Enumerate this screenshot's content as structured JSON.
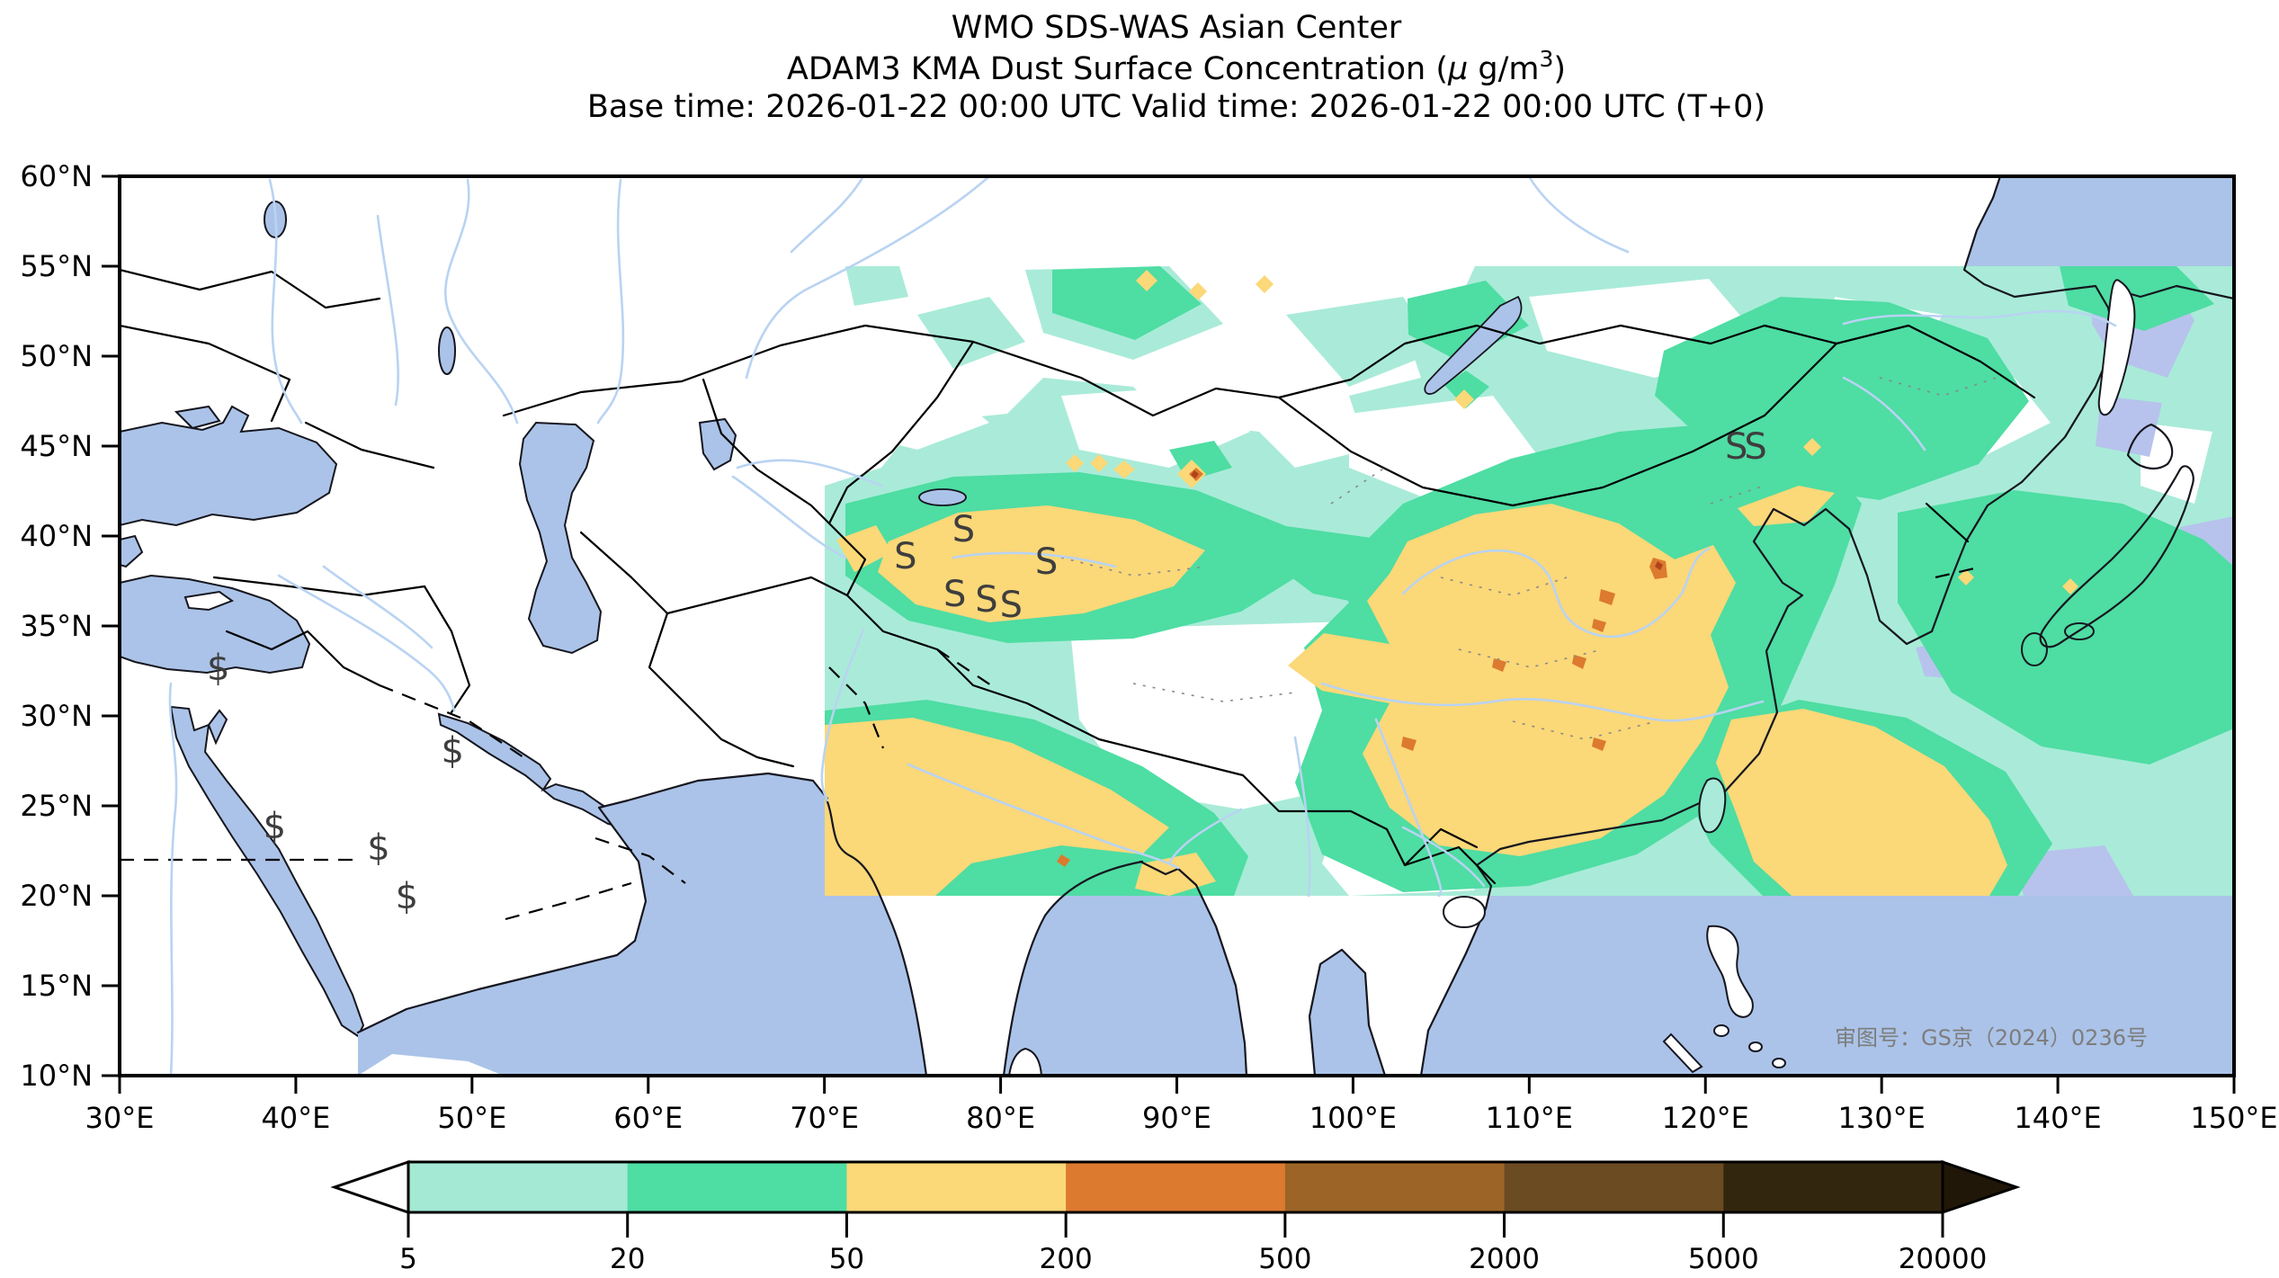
{
  "header": {
    "title": "WMO SDS-WAS Asian Center",
    "subtitle_prefix": "ADAM3 KMA Dust Surface Concentration (",
    "subtitle_mu": "μ",
    "subtitle_unit": " g/m",
    "subtitle_exp": "3",
    "subtitle_suffix": ")",
    "base_valid": "Base time: 2026-01-22 00:00 UTC Valid time: 2026-01-22 00:00 UTC (T+0)"
  },
  "axes": {
    "x": {
      "ticks": [
        "30°E",
        "40°E",
        "50°E",
        "60°E",
        "70°E",
        "80°E",
        "90°E",
        "100°E",
        "110°E",
        "120°E",
        "130°E",
        "140°E",
        "150°E"
      ]
    },
    "y": {
      "ticks": [
        "60°N",
        "55°N",
        "50°N",
        "45°N",
        "40°N",
        "35°N",
        "30°N",
        "25°N",
        "20°N",
        "15°N",
        "10°N"
      ]
    }
  },
  "colorbar": {
    "labels": [
      "5",
      "20",
      "50",
      "200",
      "500",
      "2000",
      "5000",
      "20000"
    ],
    "colors": [
      "#a3e9d4",
      "#4edda3",
      "#fbd878",
      "#dc7a2f",
      "#9c6527",
      "#6b4b22",
      "#33260f"
    ],
    "arrow_left_color": "#ffffff",
    "arrow_right_color": "#211708"
  },
  "map": {
    "annotation": "审图号：GS京（2024）0236号",
    "colors": {
      "ocean": "#abc3e8",
      "river": "#b9d3f2",
      "lavender": "#b7c3ec",
      "coast": "#16161f",
      "level1": "#a9ebd8",
      "level2": "#4edda3",
      "level3": "#fbd878",
      "level4": "#dc7a2f",
      "spot_red": "#b0431c"
    },
    "symbols": [
      {
        "glyph": "$",
        "lon": 35.6,
        "lat": 32.0
      },
      {
        "glyph": "$",
        "lon": 48.9,
        "lat": 27.4
      },
      {
        "glyph": "$",
        "lon": 38.8,
        "lat": 23.2
      },
      {
        "glyph": "$",
        "lon": 44.7,
        "lat": 22.0
      },
      {
        "glyph": "$",
        "lon": 46.3,
        "lat": 19.3
      },
      {
        "glyph": "S",
        "lon": 74.6,
        "lat": 38.2
      },
      {
        "glyph": "S",
        "lon": 77.9,
        "lat": 39.7
      },
      {
        "glyph": "S",
        "lon": 82.6,
        "lat": 37.9
      },
      {
        "glyph": "S",
        "lon": 77.4,
        "lat": 36.1
      },
      {
        "glyph": "S",
        "lon": 79.2,
        "lat": 35.8
      },
      {
        "glyph": "S",
        "lon": 80.6,
        "lat": 35.5
      },
      {
        "glyph": "SS",
        "lon": 122.2,
        "lat": 44.3
      }
    ]
  },
  "chart_data": {
    "type": "heatmap",
    "title": "ADAM3 KMA Dust Surface Concentration",
    "units": "μg/m3",
    "legend_levels": [
      5,
      20,
      50,
      200,
      500,
      2000,
      5000,
      20000
    ],
    "legend_colors": [
      "#a3e9d4",
      "#4edda3",
      "#fbd878",
      "#dc7a2f",
      "#9c6527",
      "#6b4b22",
      "#33260f"
    ],
    "lon_range": [
      30,
      150
    ],
    "lat_range": [
      10,
      60
    ],
    "legend_position": "bottom"
  }
}
